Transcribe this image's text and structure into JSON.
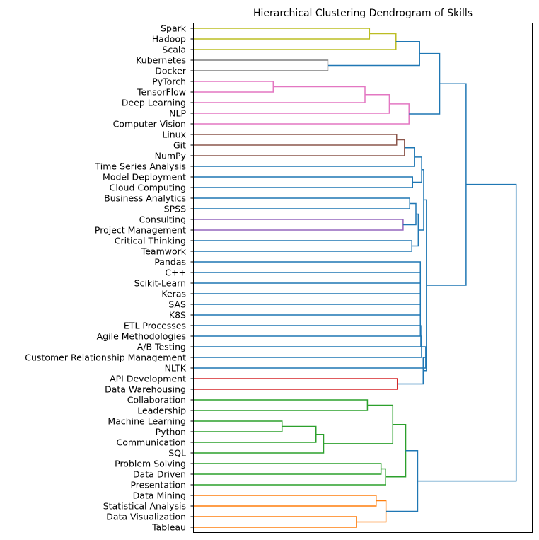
{
  "chart_data": {
    "type": "dendrogram",
    "title": "Hierarchical Clustering Dendrogram of Skills",
    "orientation": "left",
    "xlabel": "",
    "ylabel": "",
    "grid": false,
    "x_ticks_visible": false,
    "leaves": [
      "Spark",
      "Hadoop",
      "Scala",
      "Kubernetes",
      "Docker",
      "PyTorch",
      "TensorFlow",
      "Deep Learning",
      "NLP",
      "Computer Vision",
      "Linux",
      "Git",
      "NumPy",
      "Time Series Analysis",
      "Model Deployment",
      "Cloud Computing",
      "Business Analytics",
      "SPSS",
      "Consulting",
      "Project Management",
      "Critical Thinking",
      "Teamwork",
      "Pandas",
      "C++",
      "Scikit-Learn",
      "Keras",
      "SAS",
      "K8S",
      "ETL Processes",
      "Agile Methodologies",
      "A/B Testing",
      "Customer Relationship Management",
      "NLTK",
      "API Development",
      "Data Warehousing",
      "Collaboration",
      "Leadership",
      "Machine Learning",
      "Python",
      "Communication",
      "SQL",
      "Problem Solving",
      "Data Driven",
      "Presentation",
      "Data Mining",
      "Statistical Analysis",
      "Data Visualization",
      "Tableau"
    ],
    "merges": [
      {
        "a": 0,
        "b": 1,
        "height": 0.7045,
        "color": "#bcbd22"
      },
      {
        "a": 48,
        "b": 2,
        "height": 0.8107,
        "color": "#bcbd22"
      },
      {
        "a": 3,
        "b": 4,
        "height": 0.5379,
        "color": "#7f7f7f"
      },
      {
        "a": 49,
        "b": 50,
        "height": 0.9053,
        "color": "#1f77b4"
      },
      {
        "a": 5,
        "b": 6,
        "height": 0.3194,
        "color": "#e377c2"
      },
      {
        "a": 52,
        "b": 7,
        "height": 0.6867,
        "color": "#e377c2"
      },
      {
        "a": 53,
        "b": 8,
        "height": 0.7842,
        "color": "#e377c2"
      },
      {
        "a": 54,
        "b": 9,
        "height": 0.8629,
        "color": "#e377c2"
      },
      {
        "a": 51,
        "b": 55,
        "height": 0.9855,
        "color": "#1f77b4"
      },
      {
        "a": 10,
        "b": 11,
        "height": 0.8134,
        "color": "#8c564b"
      },
      {
        "a": 57,
        "b": 12,
        "height": 0.8448,
        "color": "#8c564b"
      },
      {
        "a": 58,
        "b": 13,
        "height": 0.8844,
        "color": "#1f77b4"
      },
      {
        "a": 14,
        "b": 15,
        "height": 0.8771,
        "color": "#1f77b4"
      },
      {
        "a": 59,
        "b": 60,
        "height": 0.9135,
        "color": "#1f77b4"
      },
      {
        "a": 16,
        "b": 17,
        "height": 0.8657,
        "color": "#1f77b4"
      },
      {
        "a": 18,
        "b": 19,
        "height": 0.8393,
        "color": "#9467bd"
      },
      {
        "a": 62,
        "b": 63,
        "height": 0.8906,
        "color": "#1f77b4"
      },
      {
        "a": 20,
        "b": 21,
        "height": 0.8742,
        "color": "#1f77b4"
      },
      {
        "a": 64,
        "b": 65,
        "height": 0.9,
        "color": "#1f77b4"
      },
      {
        "a": 61,
        "b": 66,
        "height": 0.9217,
        "color": "#1f77b4"
      },
      {
        "a": 22,
        "b": 23,
        "height": 0.9083,
        "color": "#1f77b4"
      },
      {
        "a": 68,
        "b": 24,
        "height": 0.9083,
        "color": "#1f77b4"
      },
      {
        "a": 69,
        "b": 25,
        "height": 0.9083,
        "color": "#1f77b4"
      },
      {
        "a": 70,
        "b": 26,
        "height": 0.9083,
        "color": "#1f77b4"
      },
      {
        "a": 71,
        "b": 27,
        "height": 0.9083,
        "color": "#1f77b4"
      },
      {
        "a": 72,
        "b": 28,
        "height": 0.9083,
        "color": "#1f77b4"
      },
      {
        "a": 73,
        "b": 29,
        "height": 0.9083,
        "color": "#1f77b4"
      },
      {
        "a": 74,
        "b": 30,
        "height": 0.9103,
        "color": "#1f77b4"
      },
      {
        "a": 75,
        "b": 31,
        "height": 0.9131,
        "color": "#1f77b4"
      },
      {
        "a": 76,
        "b": 32,
        "height": 0.9298,
        "color": "#1f77b4"
      },
      {
        "a": 33,
        "b": 34,
        "height": 0.8162,
        "color": "#d62728"
      },
      {
        "a": 77,
        "b": 78,
        "height": 0.9197,
        "color": "#1f77b4"
      },
      {
        "a": 67,
        "b": 79,
        "height": 0.9326,
        "color": "#1f77b4"
      },
      {
        "a": 56,
        "b": 80,
        "height": 1.0913,
        "color": "#1f77b4"
      },
      {
        "a": 35,
        "b": 36,
        "height": 0.6964,
        "color": "#2ca02c"
      },
      {
        "a": 37,
        "b": 38,
        "height": 0.3546,
        "color": "#2ca02c"
      },
      {
        "a": 83,
        "b": 39,
        "height": 0.4906,
        "color": "#2ca02c"
      },
      {
        "a": 84,
        "b": 40,
        "height": 0.521,
        "color": "#2ca02c"
      },
      {
        "a": 82,
        "b": 85,
        "height": 0.7979,
        "color": "#2ca02c"
      },
      {
        "a": 41,
        "b": 42,
        "height": 0.7509,
        "color": "#2ca02c"
      },
      {
        "a": 87,
        "b": 43,
        "height": 0.7693,
        "color": "#2ca02c"
      },
      {
        "a": 86,
        "b": 88,
        "height": 0.8496,
        "color": "#2ca02c"
      },
      {
        "a": 44,
        "b": 45,
        "height": 0.7313,
        "color": "#ff7f0e"
      },
      {
        "a": 46,
        "b": 47,
        "height": 0.6524,
        "color": "#ff7f0e"
      },
      {
        "a": 90,
        "b": 91,
        "height": 0.7706,
        "color": "#ff7f0e"
      },
      {
        "a": 89,
        "b": 92,
        "height": 0.8975,
        "color": "#1f77b4"
      },
      {
        "a": 81,
        "b": 93,
        "height": 1.2918,
        "color": "#1f77b4"
      }
    ],
    "x_range": [
      0,
      1.3564
    ]
  }
}
